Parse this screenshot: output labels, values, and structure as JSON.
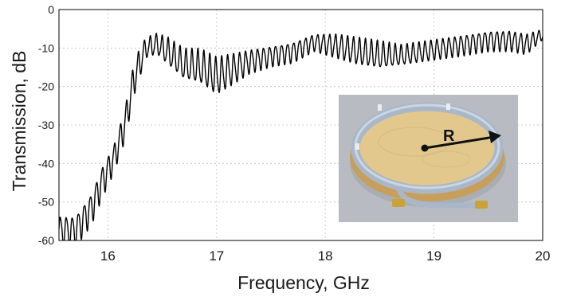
{
  "chart_data": {
    "type": "line",
    "title": "",
    "xlabel": "Frequency, GHz",
    "ylabel": "Transmission, dB",
    "xlim": [
      15.55,
      20.0
    ],
    "ylim": [
      -60,
      0
    ],
    "x_ticks": [
      16,
      17,
      18,
      19,
      20
    ],
    "y_ticks": [
      0,
      -10,
      -20,
      -30,
      -40,
      -50,
      -60
    ],
    "x_tick_labels": [
      "16",
      "17",
      "18",
      "19",
      "20"
    ],
    "y_tick_labels": [
      "0",
      "-10",
      "-20",
      "-30",
      "-40",
      "-50",
      "-60"
    ],
    "grid": true,
    "legend": "none",
    "line_color": "#000000",
    "series": [
      {
        "name": "",
        "envelope": {
          "x": [
            15.55,
            15.7,
            15.85,
            15.95,
            16.05,
            16.15,
            16.25,
            16.35,
            16.45,
            16.55,
            16.7,
            16.85,
            17.0,
            17.15,
            17.3,
            17.5,
            17.7,
            17.9,
            18.1,
            18.3,
            18.5,
            18.7,
            18.9,
            19.1,
            19.3,
            19.5,
            19.7,
            19.85,
            20.0
          ],
          "upper": [
            -53,
            -53,
            -47,
            -40,
            -35,
            -26,
            -12,
            -7,
            -6,
            -7,
            -10,
            -10,
            -12,
            -11,
            -10,
            -9,
            -8,
            -6,
            -6,
            -7,
            -8,
            -9,
            -8,
            -7,
            -6,
            -5,
            -5,
            -6,
            -5
          ],
          "lower": [
            -62,
            -62,
            -56,
            -49,
            -43,
            -35,
            -22,
            -13,
            -12,
            -15,
            -19,
            -20,
            -23,
            -20,
            -17,
            -15,
            -14,
            -11,
            -13,
            -15,
            -16,
            -15,
            -14,
            -13,
            -12,
            -11,
            -11,
            -12,
            -8
          ]
        },
        "ripple_period_ghz": 0.055
      }
    ]
  },
  "inset": {
    "label": "R",
    "colors": {
      "background": "#b8bcc2",
      "wood": "#e2c88c",
      "wood_dark": "#c79f5a",
      "cable": "#a9b7c9",
      "cable_light": "#d4dde8",
      "connector": "#c9a23a"
    }
  }
}
